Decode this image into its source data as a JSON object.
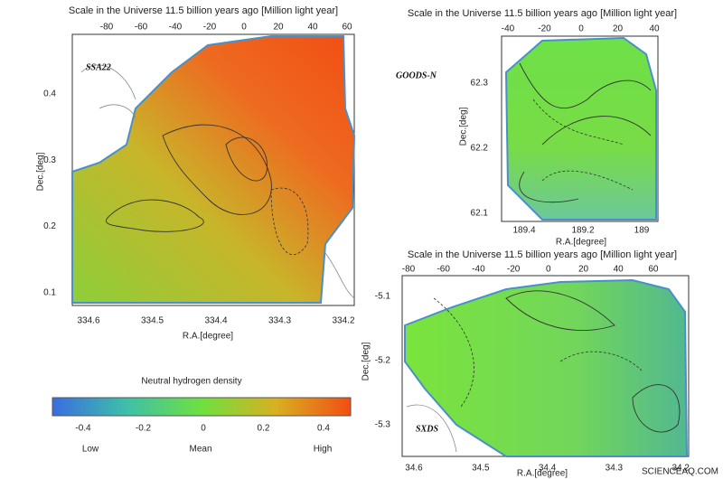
{
  "panels": [
    {
      "title": "Scale in the Universe 11.5 billion years ago [Million light year]",
      "field": "SSA22",
      "top_ticks": [
        -80,
        -60,
        -40,
        -20,
        0,
        20,
        40,
        60
      ],
      "left_ticks": [
        0.4,
        0.3,
        0.2,
        0.1
      ],
      "bottom_ticks": [
        334.6,
        334.5,
        334.4,
        334.3,
        334.2
      ],
      "y_label": "Dec.[deg]",
      "x_label": "R.A.[degree]"
    },
    {
      "title": "Scale in the Universe 11.5 billion years ago [Million light year]",
      "field": "GOODS-N",
      "top_ticks": [
        -40,
        -20,
        0,
        20,
        40
      ],
      "left_ticks": [
        62.3,
        62.2,
        62.1
      ],
      "bottom_ticks": [
        189.4,
        189.2,
        189
      ],
      "y_label": "Dec.[deg]",
      "x_label": "R.A.[degree]"
    },
    {
      "title": "Scale in the Universe 11.5 billion years ago [Million light year]",
      "field": "SXDS",
      "top_ticks": [
        -80,
        -60,
        -40,
        -20,
        0,
        20,
        40,
        60
      ],
      "left_ticks": [
        -5.1,
        -5.2,
        -5.3
      ],
      "bottom_ticks": [
        34.6,
        34.5,
        34.4,
        34.3,
        34.2
      ],
      "y_label": "Dec.[deg]",
      "x_label": "R.A.[degree]"
    }
  ],
  "colorbar": {
    "title": "Neutral hydrogen density",
    "ticks": [
      -0.4,
      -0.2,
      0,
      0.2,
      0.4
    ],
    "low": "Low",
    "mean": "Mean",
    "high": "High"
  },
  "watermark": "SCIENCEAQ.COM"
}
